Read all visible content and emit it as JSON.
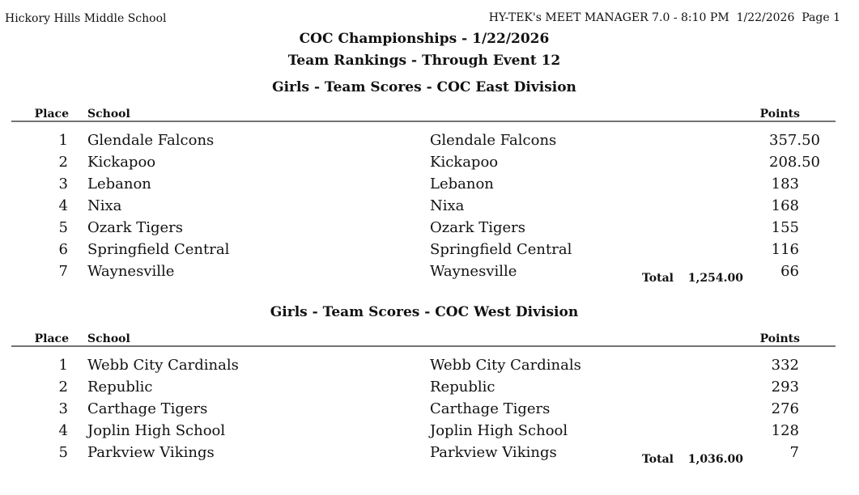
{
  "header": {
    "left": "Hickory Hills Middle School",
    "right": "HY-TEK's MEET MANAGER 7.0 - 8:10 PM  1/22/2026  Page 1"
  },
  "title": "COC Championships - 1/22/2026",
  "subtitle": "Team Rankings - Through Event 12",
  "columns": {
    "place": "Place",
    "school": "School",
    "points": "Points"
  },
  "total_label": "Total",
  "sections": [
    {
      "title": "Girls - Team Scores - COC East Division",
      "rows": [
        [
          "1",
          "Glendale Falcons",
          "Glendale Falcons",
          "357.50"
        ],
        [
          "2",
          "Kickapoo",
          "Kickapoo",
          "208.50"
        ],
        [
          "3",
          "Lebanon",
          "Lebanon",
          "183"
        ],
        [
          "4",
          "Nixa",
          "Nixa",
          "168"
        ],
        [
          "5",
          "Ozark Tigers",
          "Ozark Tigers",
          "155"
        ],
        [
          "6",
          "Springfield Central",
          "Springfield Central",
          "116"
        ],
        [
          "7",
          "Waynesville",
          "Waynesville",
          "66"
        ]
      ],
      "total": "1,254.00"
    },
    {
      "title": "Girls - Team Scores - COC West Division",
      "rows": [
        [
          "1",
          "Webb City Cardinals",
          "Webb City Cardinals",
          "332"
        ],
        [
          "2",
          "Republic",
          "Republic",
          "293"
        ],
        [
          "3",
          "Carthage Tigers",
          "Carthage Tigers",
          "276"
        ],
        [
          "4",
          "Joplin High School",
          "Joplin High School",
          "128"
        ],
        [
          "5",
          "Parkview Vikings",
          "Parkview Vikings",
          "7"
        ]
      ],
      "total": "1,036.00"
    }
  ]
}
